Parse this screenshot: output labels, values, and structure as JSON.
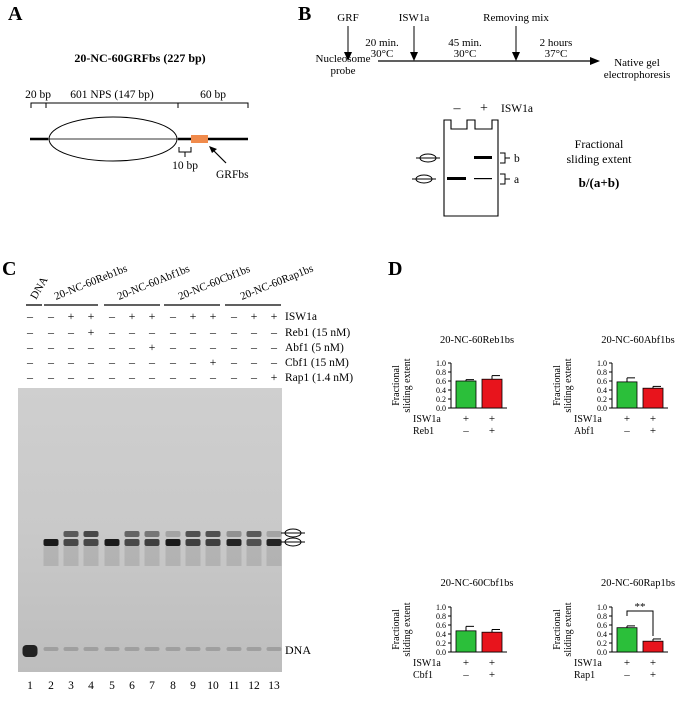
{
  "panels": {
    "A": {
      "letter": "A",
      "construct_title": "20-NC-60GRFbs (227 bp)",
      "label_20bp": "20 bp",
      "label_nps": "601 NPS (147 bp)",
      "label_60bp": "60 bp",
      "label_10bp": "10 bp",
      "label_grfbs": "GRFbs",
      "grfbs_color": "#f08a4b"
    },
    "B": {
      "letter": "B",
      "steps": [
        "GRF",
        "ISW1a",
        "Removing mix"
      ],
      "step_conditions": [
        [
          "20 min.",
          "30°C"
        ],
        [
          "45 min.",
          "30°C"
        ],
        [
          "2 hours",
          "37°C"
        ]
      ],
      "start_label": [
        "Nucleosome",
        "probe"
      ],
      "end_label": [
        "Native gel",
        "electrophoresis"
      ],
      "gel_minus": "–",
      "gel_plus": "+",
      "gel_isw1a": "ISW1a",
      "band_b": "b",
      "band_a": "a",
      "metric_label": [
        "Fractional",
        "sliding extent"
      ],
      "formula": "b/(a+b)"
    },
    "C": {
      "letter": "C",
      "lane_group_labels": [
        "DNA",
        "20-NC-60Reb1bs",
        "20-NC-60Abf1bs",
        "20-NC-60Cbf1bs",
        "20-NC-60Rap1bs"
      ],
      "conditions": [
        {
          "label": "ISW1a",
          "signs": [
            "–",
            "–",
            "+",
            "+",
            "–",
            "+",
            "+",
            "–",
            "+",
            "+",
            "–",
            "+",
            "+"
          ]
        },
        {
          "label": "Reb1 (15 nM)",
          "signs": [
            "–",
            "–",
            "–",
            "+",
            "–",
            "–",
            "–",
            "–",
            "–",
            "–",
            "–",
            "–",
            "–"
          ]
        },
        {
          "label": "Abf1 (5 nM)",
          "signs": [
            "–",
            "–",
            "–",
            "–",
            "–",
            "–",
            "+",
            "–",
            "–",
            "–",
            "–",
            "–",
            "–"
          ]
        },
        {
          "label": "Cbf1 (15 nM)",
          "signs": [
            "–",
            "–",
            "–",
            "–",
            "–",
            "–",
            "–",
            "–",
            "–",
            "+",
            "–",
            "–",
            "–"
          ]
        },
        {
          "label": "Rap1 (1.4 nM)",
          "signs": [
            "–",
            "–",
            "–",
            "–",
            "–",
            "–",
            "–",
            "–",
            "–",
            "–",
            "–",
            "–",
            "+"
          ]
        }
      ],
      "dna_label": "DNA",
      "lane_numbers": [
        "1",
        "2",
        "3",
        "4",
        "5",
        "6",
        "7",
        "8",
        "9",
        "10",
        "11",
        "12",
        "13"
      ]
    },
    "D": {
      "letter": "D",
      "ylabel": [
        "Fractional",
        "sliding extent"
      ],
      "bar_colors": [
        "#2bbf3a",
        "#e8141c"
      ],
      "significance": "**"
    }
  },
  "chart_data": [
    {
      "type": "bar",
      "title": "20-NC-60Reb1bs",
      "ylim": [
        0,
        1
      ],
      "yticks": [
        "0.0",
        "0.2",
        "0.4",
        "0.6",
        "0.8",
        "1.0"
      ],
      "row_labels": [
        "ISW1a",
        "Reb1"
      ],
      "column_signs": [
        [
          "+",
          "–"
        ],
        [
          "+",
          "+"
        ]
      ],
      "values": [
        0.6,
        0.64
      ],
      "errors": [
        0.03,
        0.08
      ]
    },
    {
      "type": "bar",
      "title": "20-NC-60Abf1bs",
      "ylim": [
        0,
        1
      ],
      "yticks": [
        "0.0",
        "0.2",
        "0.4",
        "0.6",
        "0.8",
        "1.0"
      ],
      "row_labels": [
        "ISW1a",
        "Abf1"
      ],
      "column_signs": [
        [
          "+",
          "–"
        ],
        [
          "+",
          "+"
        ]
      ],
      "values": [
        0.58,
        0.44
      ],
      "errors": [
        0.09,
        0.04
      ]
    },
    {
      "type": "bar",
      "title": "20-NC-60Cbf1bs",
      "ylim": [
        0,
        1
      ],
      "yticks": [
        "0.0",
        "0.2",
        "0.4",
        "0.6",
        "0.8",
        "1.0"
      ],
      "row_labels": [
        "ISW1a",
        "Cbf1"
      ],
      "column_signs": [
        [
          "+",
          "–"
        ],
        [
          "+",
          "+"
        ]
      ],
      "values": [
        0.47,
        0.44
      ],
      "errors": [
        0.1,
        0.06
      ]
    },
    {
      "type": "bar",
      "title": "20-NC-60Rap1bs",
      "ylim": [
        0,
        1
      ],
      "yticks": [
        "0.0",
        "0.2",
        "0.4",
        "0.6",
        "0.8",
        "1.0"
      ],
      "row_labels": [
        "ISW1a",
        "Rap1"
      ],
      "column_signs": [
        [
          "+",
          "–"
        ],
        [
          "+",
          "+"
        ]
      ],
      "values": [
        0.54,
        0.24
      ],
      "errors": [
        0.04,
        0.05
      ]
    }
  ]
}
